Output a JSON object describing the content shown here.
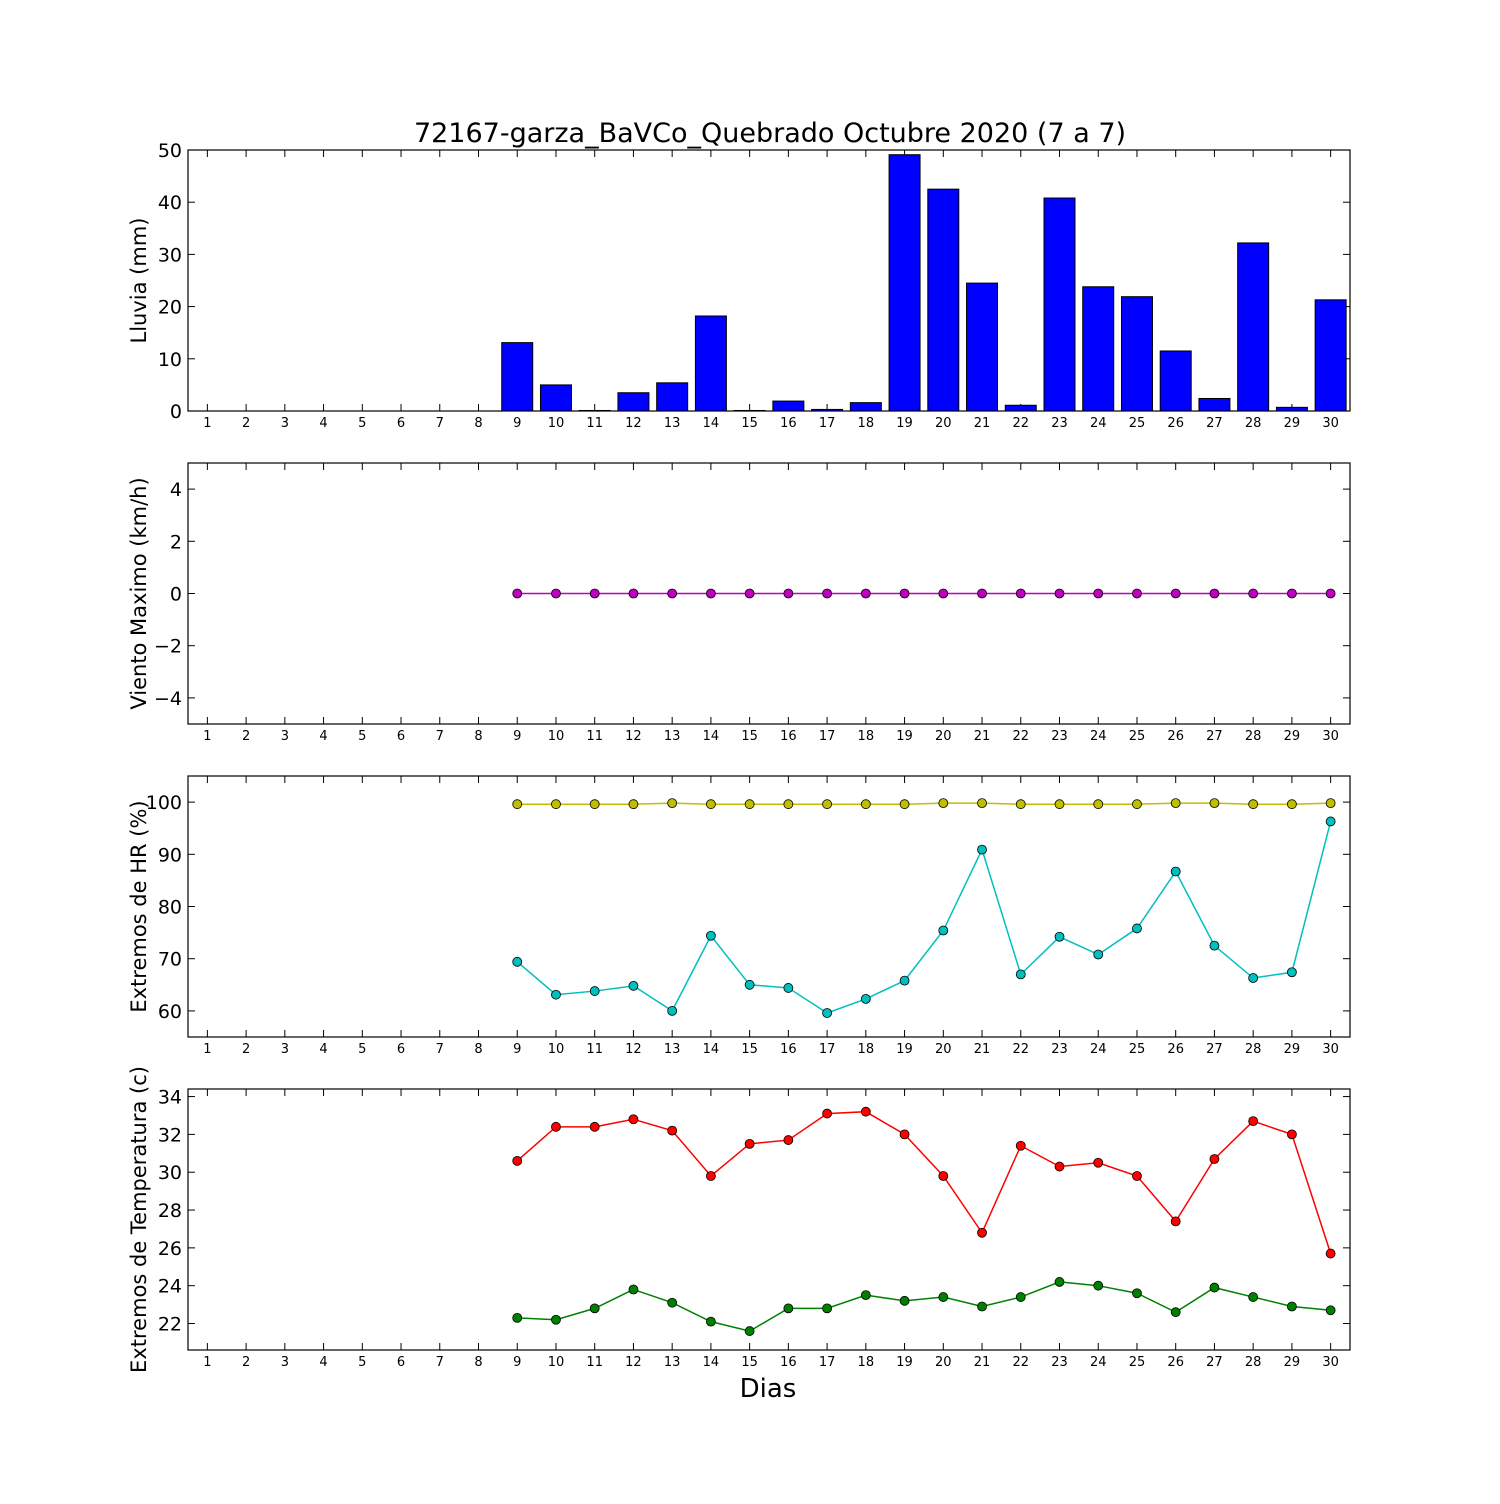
{
  "chart_data": {
    "title": "72167-garza_BaVCo_Quebrado Octubre 2020  (7 a 7)",
    "xlabel": "Dias",
    "days": [
      1,
      2,
      3,
      4,
      5,
      6,
      7,
      8,
      9,
      10,
      11,
      12,
      13,
      14,
      15,
      16,
      17,
      18,
      19,
      20,
      21,
      22,
      23,
      24,
      25,
      26,
      27,
      28,
      29,
      30
    ],
    "panels": [
      {
        "type": "bar",
        "ylabel": "Lluvia (mm)",
        "ylim": [
          0,
          50
        ],
        "yticks": [
          "0",
          "10",
          "20",
          "30",
          "40",
          "50"
        ],
        "series": [
          {
            "color": "#0000ff",
            "x": [
              9,
              10,
              11,
              12,
              13,
              14,
              15,
              16,
              17,
              18,
              19,
              20,
              21,
              22,
              23,
              24,
              25,
              26,
              27,
              28,
              29,
              30
            ],
            "values": [
              13.1,
              5.0,
              0.1,
              3.5,
              5.4,
              18.2,
              0.1,
              1.9,
              0.3,
              1.6,
              49.1,
              42.5,
              24.5,
              1.1,
              40.8,
              23.8,
              21.9,
              11.5,
              2.4,
              32.2,
              0.7,
              21.3
            ]
          }
        ]
      },
      {
        "type": "line",
        "ylabel": "Viento Maximo (km/h)",
        "ylim": [
          -5,
          5
        ],
        "yticks": [
          "−4",
          "−2",
          "0",
          "2",
          "4"
        ],
        "series": [
          {
            "color": "#bf00bf",
            "x": [
              9,
              10,
              11,
              12,
              13,
              14,
              15,
              16,
              17,
              18,
              19,
              20,
              21,
              22,
              23,
              24,
              25,
              26,
              27,
              28,
              29,
              30
            ],
            "values": [
              0,
              0,
              0,
              0,
              0,
              0,
              0,
              0,
              0,
              0,
              0,
              0,
              0,
              0,
              0,
              0,
              0,
              0,
              0,
              0,
              0,
              0
            ]
          }
        ]
      },
      {
        "type": "line",
        "ylabel": "Extremos de HR (%)",
        "ylim": [
          55,
          105
        ],
        "yticks": [
          "60",
          "70",
          "80",
          "90",
          "100"
        ],
        "series": [
          {
            "color": "#bfbf00",
            "x": [
              9,
              10,
              11,
              12,
              13,
              14,
              15,
              16,
              17,
              18,
              19,
              20,
              21,
              22,
              23,
              24,
              25,
              26,
              27,
              28,
              29,
              30
            ],
            "values": [
              99.6,
              99.6,
              99.6,
              99.6,
              99.8,
              99.6,
              99.6,
              99.6,
              99.6,
              99.6,
              99.6,
              99.8,
              99.8,
              99.6,
              99.6,
              99.6,
              99.6,
              99.8,
              99.8,
              99.6,
              99.6,
              99.8
            ]
          },
          {
            "color": "#00bfbf",
            "x": [
              9,
              10,
              11,
              12,
              13,
              14,
              15,
              16,
              17,
              18,
              19,
              20,
              21,
              22,
              23,
              24,
              25,
              26,
              27,
              28,
              29,
              30
            ],
            "values": [
              69.4,
              63.1,
              63.8,
              64.8,
              60.0,
              74.4,
              65.0,
              64.4,
              59.6,
              62.3,
              65.8,
              75.4,
              90.9,
              67.0,
              74.2,
              70.8,
              75.8,
              86.7,
              72.5,
              66.3,
              67.4,
              96.3
            ]
          }
        ]
      },
      {
        "type": "line",
        "ylabel": "Extremos de Temperatura (c)",
        "ylim": [
          20.6,
          34.4
        ],
        "yticks": [
          "22",
          "24",
          "26",
          "28",
          "30",
          "32",
          "34"
        ],
        "series": [
          {
            "color": "#ff0000",
            "x": [
              9,
              10,
              11,
              12,
              13,
              14,
              15,
              16,
              17,
              18,
              19,
              20,
              21,
              22,
              23,
              24,
              25,
              26,
              27,
              28,
              29,
              30
            ],
            "values": [
              30.6,
              32.4,
              32.4,
              32.8,
              32.2,
              29.8,
              31.5,
              31.7,
              33.1,
              33.2,
              32.0,
              29.8,
              26.8,
              31.4,
              30.3,
              30.5,
              29.8,
              27.4,
              30.7,
              32.7,
              32.0,
              25.7
            ]
          },
          {
            "color": "#008000",
            "x": [
              9,
              10,
              11,
              12,
              13,
              14,
              15,
              16,
              17,
              18,
              19,
              20,
              21,
              22,
              23,
              24,
              25,
              26,
              27,
              28,
              29,
              30
            ],
            "values": [
              22.3,
              22.2,
              22.8,
              23.8,
              23.1,
              22.1,
              21.6,
              22.8,
              22.8,
              23.5,
              23.2,
              23.4,
              22.9,
              23.4,
              24.2,
              24.0,
              23.6,
              22.6,
              23.9,
              23.4,
              22.9,
              22.7
            ]
          }
        ]
      }
    ]
  }
}
